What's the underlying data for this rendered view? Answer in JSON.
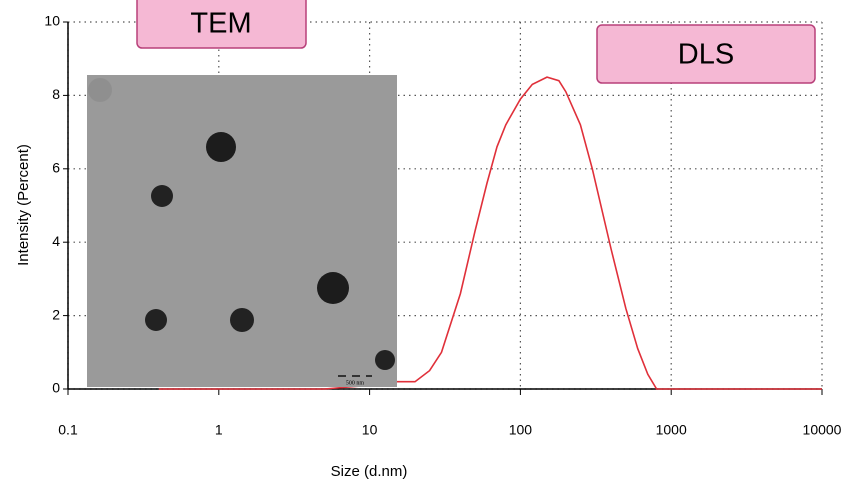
{
  "chart_data": {
    "type": "line",
    "xlabel": "Size (d.nm)",
    "ylabel": "Intensity (Percent)",
    "xscale": "log",
    "xlim": [
      0.1,
      10000
    ],
    "xticks": [
      0.1,
      1,
      10,
      100,
      1000,
      10000
    ],
    "ylim": [
      0,
      10
    ],
    "yticks": [
      0,
      2,
      4,
      6,
      8,
      10
    ],
    "grid": true,
    "x": [
      0.4,
      1,
      5,
      10,
      15,
      20,
      25,
      30,
      40,
      50,
      60,
      70,
      80,
      100,
      120,
      150,
      180,
      200,
      250,
      300,
      400,
      500,
      600,
      700,
      800,
      1000,
      10000
    ],
    "series": [
      {
        "color": "#e0303a",
        "values": [
          0,
          0,
          0,
          0.1,
          0.2,
          0.2,
          0.5,
          1.0,
          2.6,
          4.3,
          5.6,
          6.6,
          7.2,
          7.9,
          8.3,
          8.5,
          8.4,
          8.1,
          7.2,
          6.0,
          3.8,
          2.2,
          1.1,
          0.4,
          0,
          0,
          0
        ]
      }
    ],
    "annotations": [
      "TEM",
      "DLS"
    ],
    "scale_bar_label": "500 nm"
  }
}
